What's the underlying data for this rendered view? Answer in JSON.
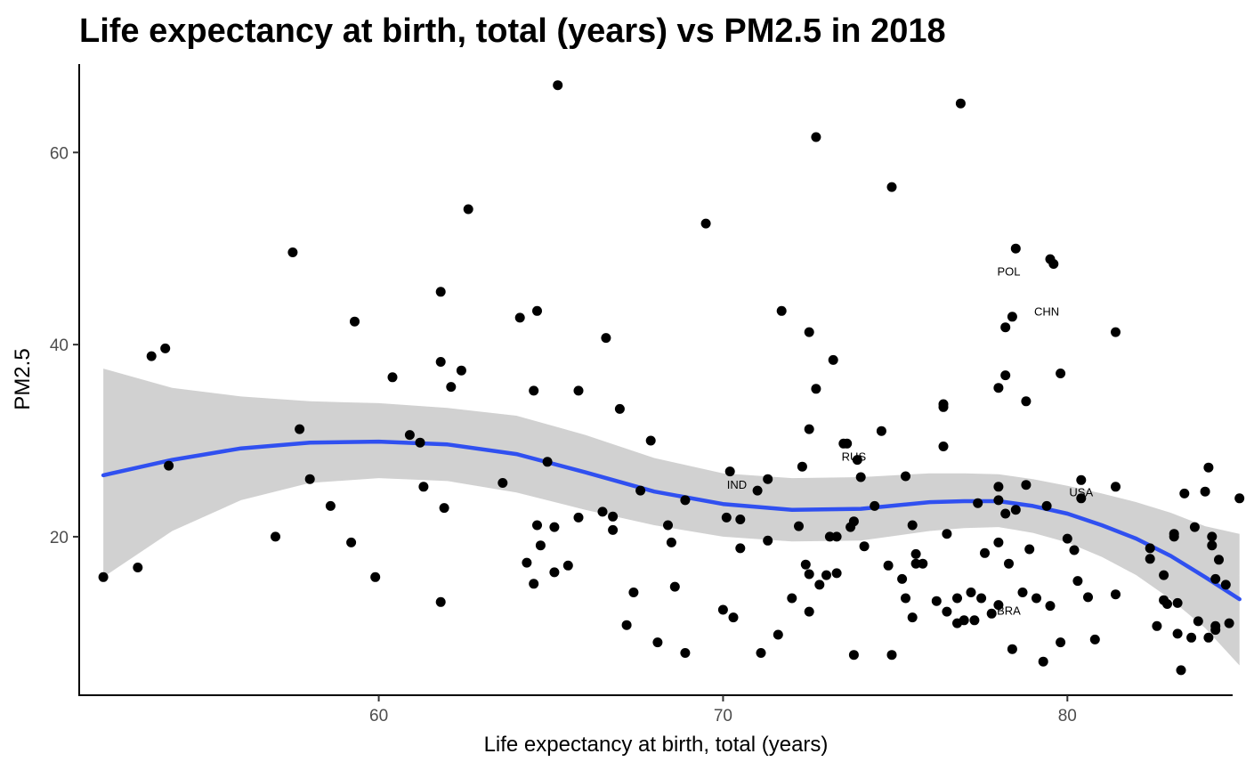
{
  "chart_data": {
    "type": "scatter",
    "title": "Life expectancy at birth, total (years) vs PM2.5 in 2018",
    "xlabel": "Life expectancy at birth, total (years)",
    "ylabel": "PM2.5",
    "xlim": [
      51.3,
      84.8
    ],
    "ylim": [
      3.5,
      69.2
    ],
    "x_ticks": [
      60,
      70,
      80
    ],
    "y_ticks": [
      20,
      40,
      60
    ],
    "grid": false,
    "legend": "none",
    "point_color": "#000000",
    "smooth_color": "#3050f0",
    "band_color": "#999999",
    "points": [
      [
        52.0,
        15.8
      ],
      [
        53.0,
        16.8
      ],
      [
        53.4,
        38.8
      ],
      [
        53.8,
        39.6
      ],
      [
        53.9,
        27.4
      ],
      [
        57.0,
        20.0
      ],
      [
        57.5,
        49.6
      ],
      [
        58.0,
        26.0
      ],
      [
        57.7,
        31.2
      ],
      [
        58.6,
        23.2
      ],
      [
        59.2,
        19.4
      ],
      [
        59.3,
        42.4
      ],
      [
        59.9,
        15.8
      ],
      [
        60.4,
        36.6
      ],
      [
        60.9,
        30.6
      ],
      [
        61.2,
        29.8
      ],
      [
        61.3,
        25.2
      ],
      [
        61.8,
        45.5
      ],
      [
        61.8,
        38.2
      ],
      [
        61.8,
        13.2
      ],
      [
        61.9,
        23.0
      ],
      [
        62.1,
        35.6
      ],
      [
        62.4,
        37.3
      ],
      [
        62.6,
        54.1
      ],
      [
        63.6,
        25.6
      ],
      [
        64.1,
        42.8
      ],
      [
        64.3,
        17.3
      ],
      [
        64.5,
        15.1
      ],
      [
        64.5,
        35.2
      ],
      [
        64.6,
        43.5
      ],
      [
        64.6,
        21.2
      ],
      [
        64.7,
        19.1
      ],
      [
        64.9,
        27.8
      ],
      [
        65.1,
        21.0
      ],
      [
        65.1,
        16.3
      ],
      [
        65.2,
        67.0
      ],
      [
        65.5,
        17.0
      ],
      [
        65.8,
        35.2
      ],
      [
        65.8,
        22.0
      ],
      [
        66.5,
        22.6
      ],
      [
        66.6,
        40.7
      ],
      [
        66.8,
        22.1
      ],
      [
        66.8,
        20.7
      ],
      [
        67.0,
        33.3
      ],
      [
        67.2,
        10.8
      ],
      [
        67.4,
        14.2
      ],
      [
        67.6,
        24.8
      ],
      [
        67.9,
        30.0
      ],
      [
        68.1,
        9.0
      ],
      [
        68.4,
        21.2
      ],
      [
        68.5,
        19.4
      ],
      [
        68.6,
        14.8
      ],
      [
        68.9,
        7.9
      ],
      [
        68.9,
        23.8
      ],
      [
        69.5,
        52.6
      ],
      [
        70.0,
        12.4
      ],
      [
        70.1,
        22.0
      ],
      [
        70.2,
        26.8
      ],
      [
        70.3,
        11.6
      ],
      [
        70.5,
        21.8
      ],
      [
        70.5,
        18.8
      ],
      [
        71.0,
        24.8
      ],
      [
        71.1,
        7.9
      ],
      [
        71.3,
        19.6
      ],
      [
        71.3,
        26.0
      ],
      [
        71.6,
        9.8
      ],
      [
        71.7,
        43.5
      ],
      [
        72.0,
        13.6
      ],
      [
        72.2,
        21.1
      ],
      [
        72.3,
        27.3
      ],
      [
        72.4,
        17.1
      ],
      [
        72.5,
        41.3
      ],
      [
        72.5,
        31.2
      ],
      [
        72.5,
        16.1
      ],
      [
        72.5,
        12.2
      ],
      [
        72.7,
        61.6
      ],
      [
        72.7,
        35.4
      ],
      [
        72.8,
        15.0
      ],
      [
        73.0,
        16.0
      ],
      [
        73.1,
        20.0
      ],
      [
        73.2,
        38.4
      ],
      [
        73.3,
        20.0
      ],
      [
        73.3,
        16.2
      ],
      [
        73.5,
        29.7
      ],
      [
        73.6,
        29.7
      ],
      [
        73.7,
        21.0
      ],
      [
        73.8,
        21.6
      ],
      [
        73.9,
        28.0
      ],
      [
        73.8,
        7.7
      ],
      [
        74.0,
        26.2
      ],
      [
        74.1,
        19.0
      ],
      [
        74.4,
        23.2
      ],
      [
        74.6,
        31.0
      ],
      [
        74.8,
        17.0
      ],
      [
        74.9,
        56.4
      ],
      [
        74.9,
        7.7
      ],
      [
        75.2,
        15.6
      ],
      [
        75.3,
        26.3
      ],
      [
        75.3,
        13.6
      ],
      [
        75.5,
        11.6
      ],
      [
        75.5,
        21.2
      ],
      [
        75.6,
        18.2
      ],
      [
        75.6,
        17.2
      ],
      [
        75.8,
        17.2
      ],
      [
        76.2,
        13.3
      ],
      [
        76.4,
        33.8
      ],
      [
        76.4,
        33.5
      ],
      [
        76.4,
        29.4
      ],
      [
        76.5,
        12.2
      ],
      [
        76.5,
        20.3
      ],
      [
        76.8,
        11.0
      ],
      [
        76.8,
        13.6
      ],
      [
        76.9,
        65.1
      ],
      [
        77.0,
        11.3
      ],
      [
        77.3,
        11.3
      ],
      [
        77.2,
        14.2
      ],
      [
        77.4,
        23.5
      ],
      [
        77.5,
        13.6
      ],
      [
        77.6,
        18.3
      ],
      [
        77.8,
        12.0
      ],
      [
        78.0,
        12.9
      ],
      [
        78.0,
        19.4
      ],
      [
        78.0,
        35.5
      ],
      [
        78.0,
        23.8
      ],
      [
        78.0,
        25.2
      ],
      [
        78.2,
        22.4
      ],
      [
        78.2,
        41.8
      ],
      [
        78.2,
        36.8
      ],
      [
        78.3,
        17.2
      ],
      [
        78.4,
        8.3
      ],
      [
        78.4,
        42.9
      ],
      [
        78.5,
        22.8
      ],
      [
        78.5,
        50.0
      ],
      [
        78.7,
        14.2
      ],
      [
        78.8,
        34.1
      ],
      [
        78.8,
        25.4
      ],
      [
        78.9,
        18.7
      ],
      [
        79.1,
        13.6
      ],
      [
        79.3,
        7.0
      ],
      [
        79.4,
        23.2
      ],
      [
        79.5,
        12.8
      ],
      [
        79.5,
        48.9
      ],
      [
        79.6,
        48.4
      ],
      [
        79.8,
        37.0
      ],
      [
        79.8,
        9.0
      ],
      [
        80.0,
        19.8
      ],
      [
        80.2,
        18.6
      ],
      [
        80.3,
        15.4
      ],
      [
        80.4,
        25.9
      ],
      [
        80.4,
        24.0
      ],
      [
        80.6,
        13.7
      ],
      [
        80.8,
        9.3
      ],
      [
        81.4,
        41.3
      ],
      [
        81.4,
        14.0
      ],
      [
        81.4,
        25.2
      ],
      [
        82.4,
        18.8
      ],
      [
        82.4,
        17.7
      ],
      [
        82.6,
        10.7
      ],
      [
        82.8,
        16.0
      ],
      [
        82.8,
        13.4
      ],
      [
        82.9,
        13.0
      ],
      [
        83.1,
        20.0
      ],
      [
        83.1,
        20.3
      ],
      [
        83.2,
        13.1
      ],
      [
        83.2,
        9.9
      ],
      [
        83.3,
        6.1
      ],
      [
        83.4,
        24.5
      ],
      [
        83.6,
        9.5
      ],
      [
        83.7,
        21.0
      ],
      [
        83.8,
        11.2
      ],
      [
        84.0,
        24.7
      ],
      [
        84.1,
        27.2
      ],
      [
        84.1,
        9.5
      ],
      [
        84.3,
        10.7
      ],
      [
        84.3,
        10.3
      ],
      [
        84.2,
        19.1
      ],
      [
        84.2,
        20.0
      ],
      [
        84.3,
        15.6
      ],
      [
        84.6,
        15.0
      ],
      [
        84.7,
        11.0
      ],
      [
        84.4,
        17.6
      ],
      [
        85.0,
        24.0
      ]
    ],
    "labels": [
      {
        "text": "POL",
        "x": 78.3,
        "y": 47.2
      },
      {
        "text": "CHN",
        "x": 79.4,
        "y": 43.0
      },
      {
        "text": "RUS",
        "x": 73.8,
        "y": 27.9
      },
      {
        "text": "IND",
        "x": 70.4,
        "y": 25.0
      },
      {
        "text": "USA",
        "x": 80.4,
        "y": 24.2
      },
      {
        "text": "BRA",
        "x": 78.3,
        "y": 11.9
      }
    ],
    "smooth": {
      "x": [
        52.0,
        54,
        56,
        58,
        60,
        62,
        64,
        66,
        68,
        70,
        72,
        74,
        76,
        77,
        78,
        79,
        80,
        81,
        82,
        83,
        84,
        85
      ],
      "y": [
        26.4,
        28.0,
        29.2,
        29.8,
        29.9,
        29.6,
        28.6,
        26.7,
        24.7,
        23.4,
        22.8,
        22.9,
        23.6,
        23.7,
        23.7,
        23.2,
        22.4,
        21.2,
        19.8,
        18.0,
        15.8,
        13.5
      ],
      "lower": [
        15.8,
        20.6,
        23.8,
        25.6,
        26.1,
        25.8,
        24.6,
        22.8,
        21.2,
        20.0,
        19.5,
        19.6,
        20.6,
        20.9,
        21.0,
        20.4,
        19.4,
        17.9,
        16.0,
        13.5,
        10.5,
        6.6
      ],
      "upper": [
        37.5,
        35.5,
        34.6,
        34.1,
        33.9,
        33.4,
        32.6,
        30.6,
        28.2,
        26.6,
        26.1,
        26.2,
        26.6,
        26.6,
        26.5,
        26.0,
        25.3,
        24.5,
        23.6,
        22.5,
        21.1,
        20.3
      ]
    }
  }
}
